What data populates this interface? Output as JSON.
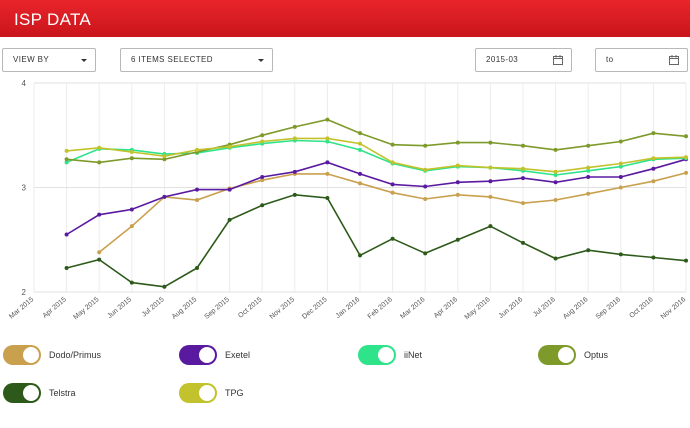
{
  "header": {
    "title": "ISP DATA",
    "color": "#d71920"
  },
  "controls": {
    "view_by": "VIEW BY",
    "items_selected": "6 ITEMS SELECTED",
    "date_from": "2015-03",
    "date_to": "to"
  },
  "chart_data": {
    "type": "line",
    "x": [
      "Mar 2015",
      "Apr 2015",
      "May 2015",
      "Jun 2015",
      "Jul 2015",
      "Aug 2015",
      "Sep 2015",
      "Oct 2015",
      "Nov 2015",
      "Dec 2015",
      "Jan 2016",
      "Feb 2016",
      "Mar 2016",
      "Apr 2016",
      "May 2016",
      "Jun 2016",
      "Jul 2016",
      "Aug 2016",
      "Sep 2016",
      "Oct 2016",
      "Nov 2016"
    ],
    "yticks": [
      "2",
      "3",
      "4"
    ],
    "ylim": [
      2,
      4
    ],
    "grid": true,
    "series": [
      {
        "name": "Dodo/Primus",
        "color": "#c9a04d",
        "values": [
          null,
          null,
          2.38,
          2.63,
          2.91,
          2.88,
          2.99,
          3.07,
          3.13,
          3.13,
          3.04,
          2.95,
          2.89,
          2.93,
          2.91,
          2.85,
          2.88,
          2.94,
          3.0,
          3.06,
          3.14
        ]
      },
      {
        "name": "Exetel",
        "color": "#5a1aa0",
        "values": [
          null,
          2.55,
          2.74,
          2.79,
          2.91,
          2.98,
          2.98,
          3.1,
          3.15,
          3.24,
          3.13,
          3.03,
          3.01,
          3.05,
          3.06,
          3.09,
          3.05,
          3.1,
          3.1,
          3.18,
          3.27
        ]
      },
      {
        "name": "iiNet",
        "color": "#2ee38a",
        "values": [
          null,
          3.24,
          3.37,
          3.36,
          3.32,
          3.33,
          3.38,
          3.42,
          3.45,
          3.44,
          3.36,
          3.23,
          3.16,
          3.2,
          3.19,
          3.16,
          3.12,
          3.16,
          3.2,
          3.27,
          3.28
        ]
      },
      {
        "name": "Optus",
        "color": "#7d9a2a",
        "values": [
          null,
          3.27,
          3.24,
          3.28,
          3.27,
          3.34,
          3.41,
          3.5,
          3.58,
          3.65,
          3.52,
          3.41,
          3.4,
          3.43,
          3.43,
          3.4,
          3.36,
          3.4,
          3.44,
          3.52,
          3.49
        ]
      },
      {
        "name": "Telstra",
        "color": "#2d5a1a",
        "values": [
          null,
          2.23,
          2.31,
          2.09,
          2.05,
          2.23,
          2.69,
          2.83,
          2.93,
          2.9,
          2.35,
          2.51,
          2.37,
          2.5,
          2.63,
          2.47,
          2.32,
          2.4,
          2.36,
          2.33,
          2.3
        ]
      },
      {
        "name": "TPG",
        "color": "#c2c22c",
        "values": [
          null,
          3.35,
          3.38,
          3.34,
          3.3,
          3.36,
          3.39,
          3.44,
          3.47,
          3.47,
          3.42,
          3.24,
          3.17,
          3.21,
          3.19,
          3.18,
          3.15,
          3.19,
          3.23,
          3.28,
          3.29
        ]
      }
    ]
  },
  "legend": [
    {
      "name": "Dodo/Primus",
      "color": "#c9a04d"
    },
    {
      "name": "Exetel",
      "color": "#5a1aa0"
    },
    {
      "name": "iiNet",
      "color": "#2ee38a"
    },
    {
      "name": "Optus",
      "color": "#7d9a2a"
    },
    {
      "name": "Telstra",
      "color": "#2d5a1a"
    },
    {
      "name": "TPG",
      "color": "#c2c22c"
    }
  ]
}
